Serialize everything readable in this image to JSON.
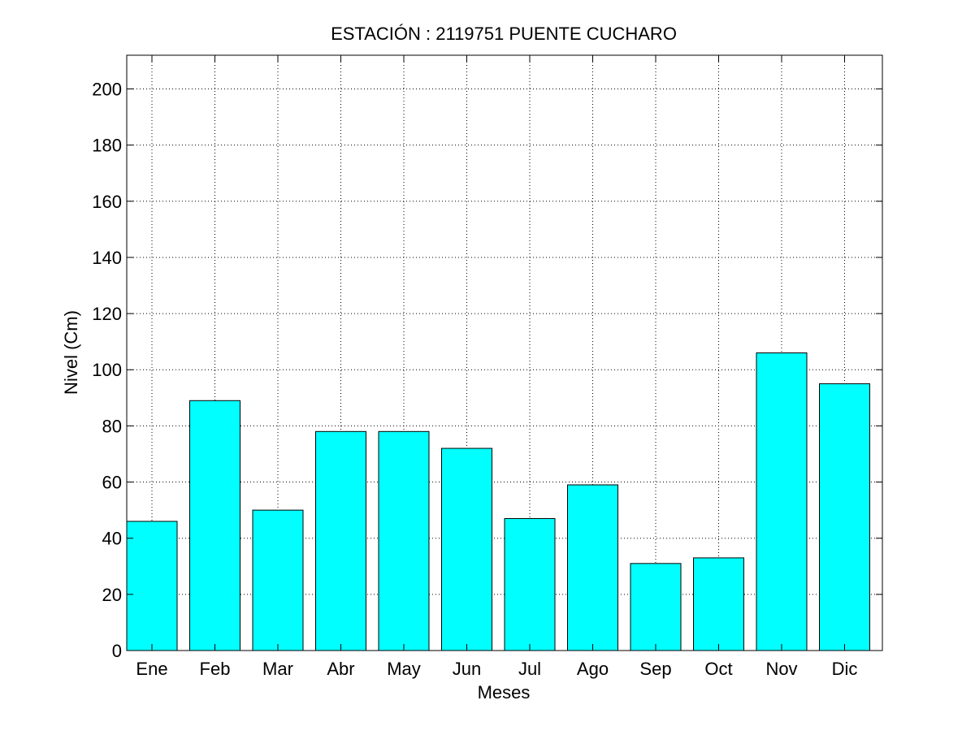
{
  "chart_data": {
    "type": "bar",
    "title": "ESTACIÓN :  2119751  PUENTE CUCHARO",
    "xlabel": "Meses",
    "ylabel": "Nivel (Cm)",
    "categories": [
      "Ene",
      "Feb",
      "Mar",
      "Abr",
      "May",
      "Jun",
      "Jul",
      "Ago",
      "Sep",
      "Oct",
      "Nov",
      "Dic"
    ],
    "values": [
      46,
      89,
      50,
      78,
      78,
      72,
      47,
      59,
      31,
      33,
      106,
      95
    ],
    "xlim": [
      0.6,
      12.6
    ],
    "ylim": [
      0,
      212
    ],
    "yticks": [
      0,
      20,
      40,
      60,
      80,
      100,
      120,
      140,
      160,
      180,
      200
    ],
    "grid": true,
    "legend": "none",
    "bar_color": "#00FFFF",
    "edge_color": "#000000"
  }
}
